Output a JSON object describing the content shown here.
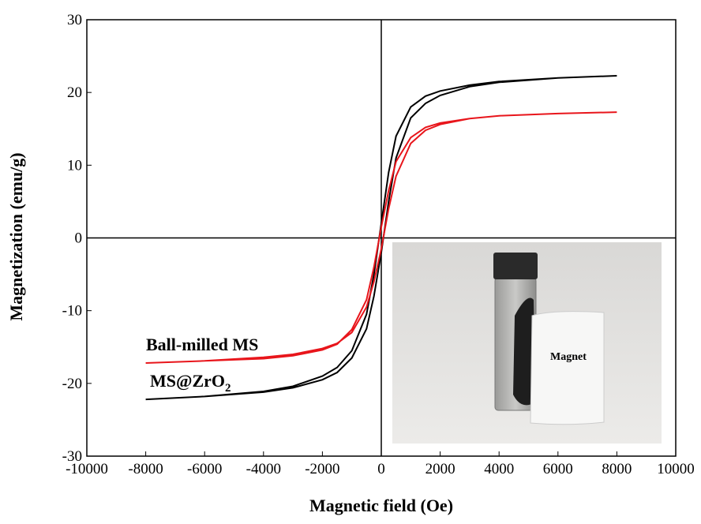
{
  "chart_data": {
    "type": "line",
    "xlabel": "Magnetic field (Oe)",
    "ylabel": "Magnetization (emu/g)",
    "xlim": [
      -10000,
      10000
    ],
    "xticks": [
      -10000,
      -8000,
      -6000,
      -4000,
      -2000,
      0,
      2000,
      4000,
      6000,
      8000,
      10000
    ],
    "ylim": [
      -30,
      30
    ],
    "yticks": [
      -30,
      -20,
      -10,
      0,
      10,
      20,
      30
    ],
    "zero_lines": true,
    "series": [
      {
        "color": "#000000",
        "x": [
          -8000,
          -6000,
          -4000,
          -3000,
          -2000,
          -1500,
          -1000,
          -500,
          -250,
          0,
          250,
          500,
          1000,
          1500,
          2000,
          3000,
          4000,
          6000,
          8000,
          6000,
          4000,
          3000,
          2000,
          1500,
          1000,
          500,
          250,
          0,
          -250,
          -500,
          -1000,
          -1500,
          -2000,
          -3000,
          -4000,
          -6000,
          -8000
        ],
        "values": [
          -22.2,
          -21.8,
          -21.2,
          -20.6,
          -19.5,
          -18.5,
          -16.5,
          -12.5,
          -8,
          -2,
          5,
          11,
          16.5,
          18.5,
          19.6,
          20.8,
          21.4,
          22,
          22.3,
          22,
          21.5,
          21,
          20.2,
          19.5,
          18,
          14,
          9,
          2,
          -5,
          -10.5,
          -15.5,
          -17.8,
          -19,
          -20.4,
          -21.1,
          -21.8,
          -22.2
        ]
      },
      {
        "color": "#e8151b",
        "x": [
          -8000,
          -6000,
          -4000,
          -3000,
          -2000,
          -1500,
          -1000,
          -500,
          -250,
          0,
          250,
          500,
          1000,
          1500,
          2000,
          3000,
          4000,
          6000,
          8000,
          6000,
          4000,
          3000,
          2000,
          1500,
          1000,
          500,
          250,
          0,
          -250,
          -500,
          -1000,
          -1500,
          -2000,
          -3000,
          -4000,
          -6000,
          -8000
        ],
        "values": [
          -17.2,
          -16.9,
          -16.4,
          -16,
          -15.2,
          -14.5,
          -13,
          -9.5,
          -6,
          -1.5,
          4,
          8.5,
          13,
          14.8,
          15.6,
          16.4,
          16.8,
          17.1,
          17.3,
          17.1,
          16.8,
          16.4,
          15.8,
          15.2,
          13.8,
          10.5,
          6.5,
          1.5,
          -4,
          -8.5,
          -12.6,
          -14.6,
          -15.4,
          -16.2,
          -16.6,
          -16.9,
          -17.2
        ]
      }
    ],
    "annotations": [
      {
        "text": "Ball-milled MS"
      },
      {
        "text": "MS@ZrO",
        "subscript": "2"
      }
    ],
    "inset_label": "Magnet"
  }
}
